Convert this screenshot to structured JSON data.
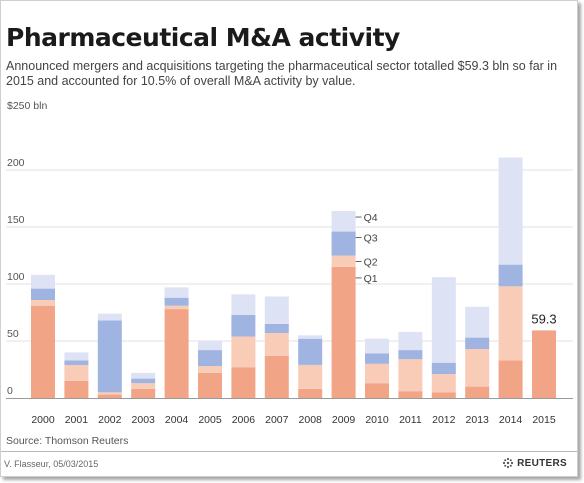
{
  "title": "Pharmaceutical M&A activity",
  "subtitle": "Announced mergers and acquisitions targeting the pharmaceutical sector totalled $59.3 bln so far in 2015 and accounted for 10.5% of overall M&A activity by value.",
  "source": "Source: Thomson Reuters",
  "credit": "V. Flasseur, 05/03/2015",
  "brand": "REUTERS",
  "colors": {
    "Q1": "#f2a487",
    "Q2": "#f9ccb8",
    "Q3": "#9fb4e0",
    "Q4": "#dde3f4",
    "grid": "#e2e2e2",
    "axis": "#999999"
  },
  "chart_data": {
    "type": "bar",
    "stacked": true,
    "title": "Pharmaceutical M&A activity",
    "unit_label": "$250 bln",
    "ylim": [
      0,
      250
    ],
    "yticks": [
      0,
      50,
      100,
      150,
      200
    ],
    "grid": true,
    "categories": [
      "2000",
      "2001",
      "2002",
      "2003",
      "2004",
      "2005",
      "2006",
      "2007",
      "2008",
      "2009",
      "2010",
      "2011",
      "2012",
      "2013",
      "2014",
      "2015"
    ],
    "series": [
      {
        "name": "Q1",
        "values": [
          81,
          15,
          3,
          8,
          78,
          22,
          27,
          37,
          8,
          115,
          13,
          6,
          5,
          10,
          33,
          59.3
        ]
      },
      {
        "name": "Q2",
        "values": [
          5,
          14,
          2,
          5,
          3,
          6,
          27,
          20,
          21,
          10,
          17,
          28,
          16,
          33,
          65,
          0
        ]
      },
      {
        "name": "Q3",
        "values": [
          10,
          4,
          63,
          4,
          7,
          14,
          19,
          8,
          23,
          21,
          9,
          8,
          10,
          10,
          19,
          0
        ]
      },
      {
        "name": "Q4",
        "values": [
          12,
          7,
          6,
          5,
          9,
          8,
          18,
          24,
          3,
          18,
          13,
          16,
          75,
          27,
          94,
          0
        ]
      }
    ],
    "legend_placement": "inline labels on 2009 bar",
    "annotations": [
      {
        "category": "2015",
        "text": "59.3"
      }
    ]
  }
}
